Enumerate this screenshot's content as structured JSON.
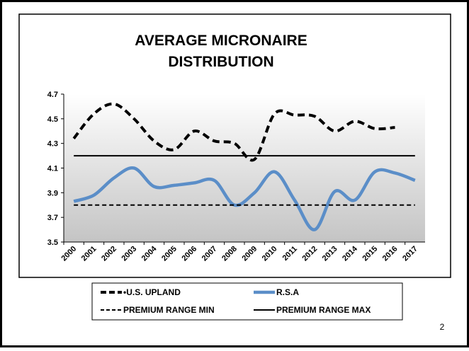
{
  "chart_data": {
    "type": "line",
    "title": [
      "AVERAGE MICRONAIRE",
      "DISTRIBUTION"
    ],
    "categories": [
      "2000",
      "2001",
      "2002",
      "2003",
      "2004",
      "2005",
      "2006",
      "2007",
      "2008",
      "2009",
      "2010",
      "2011",
      "2012",
      "2013",
      "2014",
      "2015",
      "2016",
      "2017"
    ],
    "series": [
      {
        "name": "•U.S. UPLAND",
        "color": "#000000",
        "dashed": true,
        "values": [
          4.34,
          4.54,
          4.62,
          4.5,
          4.32,
          4.25,
          4.4,
          4.32,
          4.3,
          4.17,
          4.54,
          4.53,
          4.52,
          4.4,
          4.48,
          4.42,
          4.43,
          null
        ]
      },
      {
        "name": "R.S.A",
        "color": "#5b8ec8",
        "dashed": false,
        "values": [
          3.83,
          3.88,
          4.02,
          4.1,
          3.95,
          3.96,
          3.98,
          4.0,
          3.8,
          3.9,
          4.07,
          3.84,
          3.6,
          3.91,
          3.84,
          4.07,
          4.06,
          4.0
        ]
      },
      {
        "name": "PREMIUM RANGE MIN",
        "color": "#000000",
        "dashed": true,
        "values": [
          3.8,
          3.8,
          3.8,
          3.8,
          3.8,
          3.8,
          3.8,
          3.8,
          3.8,
          3.8,
          3.8,
          3.8,
          3.8,
          3.8,
          3.8,
          3.8,
          3.8,
          3.8
        ]
      },
      {
        "name": "PREMIUM RANGE MAX",
        "color": "#000000",
        "dashed": false,
        "values": [
          4.2,
          4.2,
          4.2,
          4.2,
          4.2,
          4.2,
          4.2,
          4.2,
          4.2,
          4.2,
          4.2,
          4.2,
          4.2,
          4.2,
          4.2,
          4.2,
          4.2,
          4.2
        ]
      }
    ],
    "ylim": [
      3.5,
      4.7
    ],
    "yticks": [
      3.5,
      3.7,
      3.9,
      4.1,
      4.3,
      4.5,
      4.7
    ]
  },
  "slide_number": "2"
}
